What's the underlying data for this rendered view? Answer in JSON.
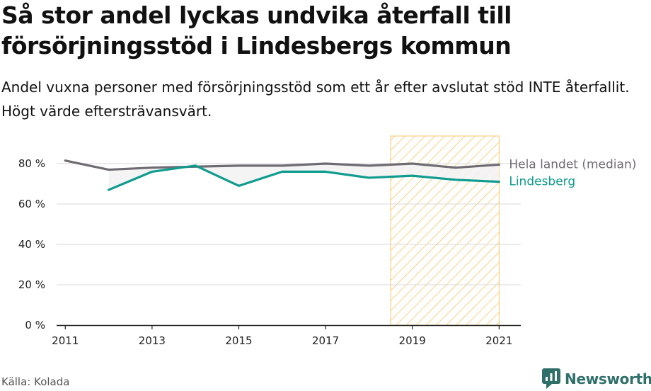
{
  "title": "Så stor andel lyckas undvika återfall till försörjningsstöd i Lindesbergs kommun",
  "subtitle": "Andel vuxna personer med försörjningsstöd som ett år efter avslutat stöd INTE återfallit. Högt värde eftersträvansvärt.",
  "source": "Källa: Kolada",
  "brand": "Newsworthy",
  "colors": {
    "national": "#6f6b72",
    "local": "#0f9c8f",
    "highlight": "#f4c76a",
    "grid": "#d8d8d8",
    "brand": "#2f6f6a"
  },
  "chart_data": {
    "type": "line",
    "x": [
      2011,
      2012,
      2013,
      2014,
      2015,
      2016,
      2017,
      2018,
      2019,
      2020,
      2021
    ],
    "x_ticks": [
      "2011",
      "2013",
      "2015",
      "2017",
      "2019",
      "2021"
    ],
    "y_ticks": [
      "0 %",
      "20 %",
      "40 %",
      "60 %",
      "80 %"
    ],
    "ylim": [
      0,
      80
    ],
    "highlight_range": [
      2018.5,
      2021
    ],
    "series": [
      {
        "name": "Hela landet (median)",
        "color": "#6f6b72",
        "values": [
          81.5,
          77,
          78,
          78.5,
          79,
          79,
          80,
          79,
          80,
          78,
          79.5
        ]
      },
      {
        "name": "Lindesberg",
        "color": "#0f9c8f",
        "values": [
          null,
          67,
          76,
          79,
          69,
          76,
          76,
          73,
          74,
          72,
          71
        ]
      }
    ]
  }
}
